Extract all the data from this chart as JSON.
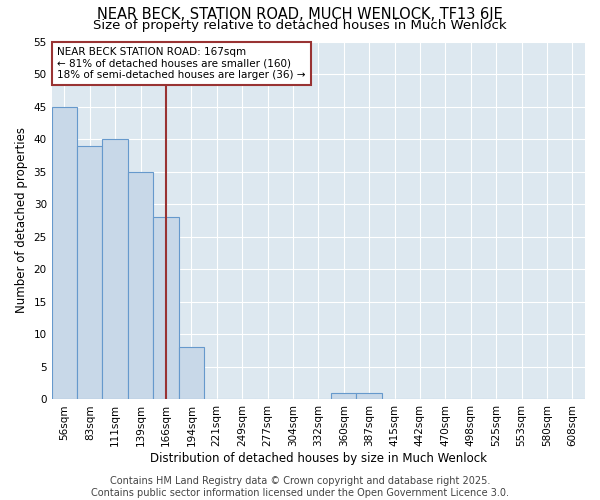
{
  "title": "NEAR BECK, STATION ROAD, MUCH WENLOCK, TF13 6JE",
  "subtitle": "Size of property relative to detached houses in Much Wenlock",
  "xlabel": "Distribution of detached houses by size in Much Wenlock",
  "ylabel": "Number of detached properties",
  "categories": [
    "56sqm",
    "83sqm",
    "111sqm",
    "139sqm",
    "166sqm",
    "194sqm",
    "221sqm",
    "249sqm",
    "277sqm",
    "304sqm",
    "332sqm",
    "360sqm",
    "387sqm",
    "415sqm",
    "442sqm",
    "470sqm",
    "498sqm",
    "525sqm",
    "553sqm",
    "580sqm",
    "608sqm"
  ],
  "values": [
    45,
    39,
    40,
    35,
    28,
    8,
    0,
    0,
    0,
    0,
    0,
    1,
    1,
    0,
    0,
    0,
    0,
    0,
    0,
    0,
    0
  ],
  "bar_color": "#c8d8e8",
  "bar_edge_color": "#6699cc",
  "vline_x_index": 4,
  "vline_color": "#993333",
  "annotation_text": "NEAR BECK STATION ROAD: 167sqm\n← 81% of detached houses are smaller (160)\n18% of semi-detached houses are larger (36) →",
  "annotation_box_color": "white",
  "annotation_box_edge_color": "#993333",
  "ylim": [
    0,
    55
  ],
  "yticks": [
    0,
    5,
    10,
    15,
    20,
    25,
    30,
    35,
    40,
    45,
    50,
    55
  ],
  "plot_bg_color": "#dde8f0",
  "figure_bg_color": "#ffffff",
  "grid_color": "#ffffff",
  "footer": "Contains HM Land Registry data © Crown copyright and database right 2025.\nContains public sector information licensed under the Open Government Licence 3.0.",
  "title_fontsize": 10.5,
  "subtitle_fontsize": 9.5,
  "footer_fontsize": 7,
  "axis_label_fontsize": 8.5,
  "tick_fontsize": 7.5
}
